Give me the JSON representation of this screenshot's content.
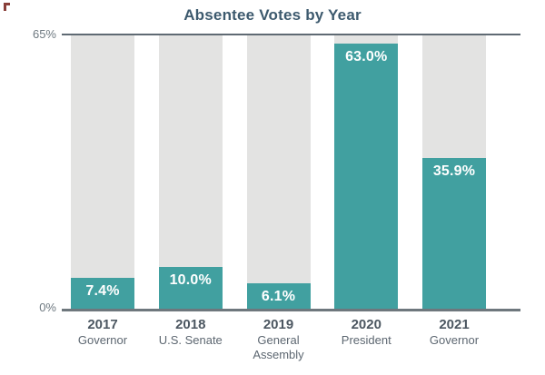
{
  "chart_data": {
    "type": "bar",
    "title": "Absentee Votes by Year",
    "categories": [
      {
        "year": "2017",
        "office": "Governor"
      },
      {
        "year": "2018",
        "office": "U.S. Senate"
      },
      {
        "year": "2019",
        "office": "General Assembly"
      },
      {
        "year": "2020",
        "office": "President"
      },
      {
        "year": "2021",
        "office": "Governor"
      }
    ],
    "values": [
      7.4,
      10.0,
      6.1,
      63.0,
      35.9
    ],
    "value_labels": [
      "7.4%",
      "10.0%",
      "6.1%",
      "63.0%",
      "35.9%"
    ],
    "xlabel": "",
    "ylabel": "",
    "ylim": [
      0,
      65
    ],
    "yticks": [
      {
        "label": "65%",
        "value": 65
      },
      {
        "label": "0%",
        "value": 0
      }
    ],
    "legend": "none",
    "grid": "top-and-bottom-lines-only",
    "colors": {
      "bar": "#41a0a0",
      "track": "#e3e3e2",
      "title": "#3d5a6e",
      "axis_line": "#5f6a73",
      "tick_label": "#6e7980",
      "year_label": "#4c5761",
      "office_label": "#5d6771",
      "value_label": "#ffffff",
      "corner_artifact": "#7d2b24"
    }
  }
}
